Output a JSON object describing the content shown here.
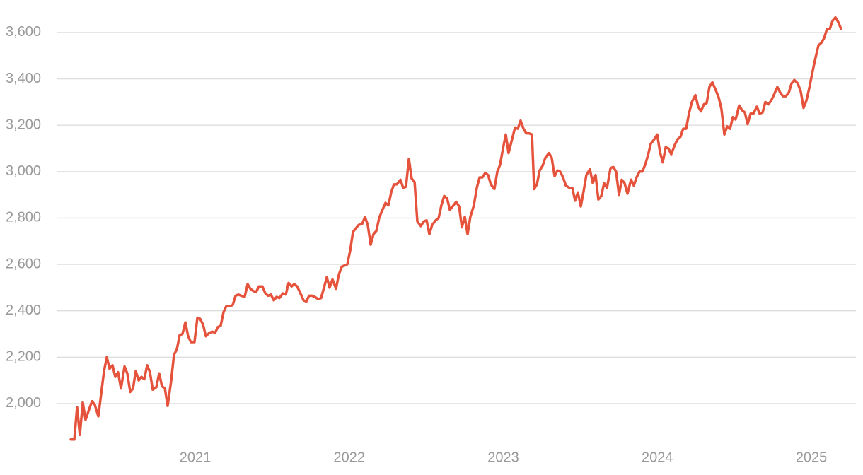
{
  "chart_data": {
    "type": "line",
    "x": [
      2020.192,
      2020.215,
      2020.233,
      2020.251,
      2020.27,
      2020.288,
      2020.311,
      2020.33,
      2020.348,
      2020.371,
      2020.389,
      2020.408,
      2020.426,
      2020.444,
      2020.463,
      2020.481,
      2020.499,
      2020.518,
      2020.541,
      2020.559,
      2020.578,
      2020.596,
      2020.614,
      2020.633,
      2020.651,
      2020.669,
      2020.688,
      2020.706,
      2020.724,
      2020.747,
      2020.766,
      2020.784,
      2020.803,
      2020.821,
      2020.844,
      2020.862,
      2020.881,
      2020.899,
      2020.917,
      2020.936,
      2020.954,
      2020.972,
      2020.995,
      2021.014,
      2021.032,
      2021.051,
      2021.069,
      2021.092,
      2021.11,
      2021.129,
      2021.147,
      2021.165,
      2021.184,
      2021.202,
      2021.225,
      2021.243,
      2021.262,
      2021.28,
      2021.298,
      2021.321,
      2021.34,
      2021.358,
      2021.377,
      2021.395,
      2021.413,
      2021.436,
      2021.455,
      2021.473,
      2021.491,
      2021.51,
      2021.528,
      2021.546,
      2021.569,
      2021.588,
      2021.606,
      2021.625,
      2021.643,
      2021.661,
      2021.68,
      2021.703,
      2021.721,
      2021.739,
      2021.758,
      2021.776,
      2021.799,
      2021.817,
      2021.836,
      2021.854,
      2021.872,
      2021.891,
      2021.914,
      2021.932,
      2021.951,
      2021.969,
      2021.987,
      2022.006,
      2022.024,
      2022.042,
      2022.061,
      2022.084,
      2022.102,
      2022.12,
      2022.139,
      2022.157,
      2022.176,
      2022.194,
      2022.212,
      2022.235,
      2022.254,
      2022.272,
      2022.29,
      2022.309,
      2022.332,
      2022.35,
      2022.368,
      2022.387,
      2022.405,
      2022.424,
      2022.442,
      2022.465,
      2022.483,
      2022.502,
      2022.52,
      2022.538,
      2022.561,
      2022.58,
      2022.598,
      2022.616,
      2022.635,
      2022.653,
      2022.671,
      2022.694,
      2022.713,
      2022.731,
      2022.75,
      2022.768,
      2022.786,
      2022.809,
      2022.828,
      2022.846,
      2022.864,
      2022.883,
      2022.901,
      2022.919,
      2022.942,
      2022.961,
      2022.979,
      2022.998,
      2023.016,
      2023.034,
      2023.053,
      2023.076,
      2023.094,
      2023.112,
      2023.131,
      2023.149,
      2023.167,
      2023.186,
      2023.2,
      2023.218,
      2023.236,
      2023.255,
      2023.273,
      2023.296,
      2023.314,
      2023.333,
      2023.351,
      2023.369,
      2023.388,
      2023.406,
      2023.429,
      2023.448,
      2023.466,
      2023.484,
      2023.503,
      2023.521,
      2023.539,
      2023.562,
      2023.581,
      2023.599,
      2023.617,
      2023.636,
      2023.654,
      2023.673,
      2023.696,
      2023.714,
      2023.732,
      2023.751,
      2023.769,
      2023.787,
      2023.806,
      2023.829,
      2023.847,
      2023.865,
      2023.884,
      2023.902,
      2023.921,
      2023.939,
      2023.957,
      2023.98,
      2023.999,
      2024.017,
      2024.035,
      2024.054,
      2024.072,
      2024.09,
      2024.113,
      2024.132,
      2024.15,
      2024.168,
      2024.187,
      2024.205,
      2024.224,
      2024.247,
      2024.265,
      2024.283,
      2024.302,
      2024.32,
      2024.338,
      2024.357,
      2024.38,
      2024.398,
      2024.416,
      2024.435,
      2024.453,
      2024.472,
      2024.49,
      2024.508,
      2024.531,
      2024.55,
      2024.568,
      2024.586,
      2024.605,
      2024.623,
      2024.646,
      2024.664,
      2024.683,
      2024.701,
      2024.72,
      2024.738,
      2024.756,
      2024.779,
      2024.798,
      2024.816,
      2024.834,
      2024.853,
      2024.871,
      2024.889,
      2024.912,
      2024.931,
      2024.949,
      2024.967,
      2024.986,
      2025.004,
      2025.023,
      2025.046,
      2025.064,
      2025.082,
      2025.101,
      2025.119,
      2025.137,
      2025.156,
      2025.174,
      2025.193
    ],
    "values": [
      1845,
      1845,
      1985,
      1865,
      2005,
      1930,
      1975,
      2010,
      1995,
      1945,
      2040,
      2140,
      2200,
      2150,
      2165,
      2115,
      2135,
      2065,
      2160,
      2130,
      2050,
      2065,
      2140,
      2100,
      2115,
      2105,
      2165,
      2135,
      2060,
      2070,
      2130,
      2075,
      2065,
      1990,
      2100,
      2210,
      2235,
      2295,
      2300,
      2350,
      2290,
      2265,
      2265,
      2370,
      2365,
      2340,
      2290,
      2305,
      2310,
      2305,
      2330,
      2335,
      2395,
      2420,
      2420,
      2425,
      2465,
      2470,
      2465,
      2460,
      2515,
      2495,
      2485,
      2480,
      2505,
      2505,
      2475,
      2465,
      2470,
      2445,
      2460,
      2455,
      2475,
      2470,
      2520,
      2505,
      2515,
      2505,
      2480,
      2445,
      2440,
      2465,
      2465,
      2460,
      2450,
      2455,
      2500,
      2545,
      2500,
      2535,
      2495,
      2555,
      2590,
      2595,
      2600,
      2660,
      2740,
      2755,
      2770,
      2775,
      2805,
      2770,
      2685,
      2730,
      2745,
      2800,
      2830,
      2865,
      2855,
      2910,
      2945,
      2945,
      2965,
      2930,
      2935,
      3055,
      2970,
      2955,
      2785,
      2765,
      2785,
      2790,
      2730,
      2770,
      2790,
      2800,
      2855,
      2895,
      2885,
      2835,
      2850,
      2870,
      2850,
      2760,
      2805,
      2730,
      2805,
      2855,
      2930,
      2975,
      2975,
      2995,
      2985,
      2945,
      2925,
      3000,
      3030,
      3100,
      3160,
      3080,
      3130,
      3190,
      3185,
      3220,
      3185,
      3165,
      3165,
      3160,
      2925,
      2945,
      3005,
      3025,
      3060,
      3080,
      3060,
      2980,
      3005,
      3000,
      2975,
      2940,
      2930,
      2930,
      2875,
      2910,
      2850,
      2915,
      2985,
      3010,
      2950,
      2985,
      2880,
      2895,
      2950,
      2930,
      3015,
      3020,
      3000,
      2900,
      2965,
      2950,
      2905,
      2965,
      2940,
      2975,
      3000,
      3000,
      3030,
      3070,
      3120,
      3140,
      3160,
      3085,
      3040,
      3105,
      3100,
      3075,
      3115,
      3140,
      3150,
      3185,
      3185,
      3250,
      3300,
      3330,
      3280,
      3260,
      3290,
      3295,
      3365,
      3385,
      3350,
      3320,
      3270,
      3160,
      3195,
      3185,
      3235,
      3225,
      3285,
      3265,
      3255,
      3205,
      3250,
      3250,
      3280,
      3250,
      3255,
      3300,
      3290,
      3305,
      3330,
      3365,
      3340,
      3325,
      3325,
      3340,
      3380,
      3395,
      3380,
      3345,
      3275,
      3305,
      3360,
      3420,
      3480,
      3545,
      3555,
      3575,
      3615,
      3615,
      3650,
      3665,
      3645,
      3615
    ],
    "color": "#e5533d",
    "xlim": [
      2020.1,
      2025.289
    ],
    "xticks": [
      2021,
      2022,
      2023,
      2024,
      2025
    ],
    "ylim": [
      1820,
      3740
    ],
    "yticks": [
      {
        "value": 2000,
        "label": "2,000"
      },
      {
        "value": 2200,
        "label": "2,200"
      },
      {
        "value": 2400,
        "label": "2,400"
      },
      {
        "value": 2600,
        "label": "2,600"
      },
      {
        "value": 2800,
        "label": "2,800"
      },
      {
        "value": 3000,
        "label": "3,000"
      },
      {
        "value": 3200,
        "label": "3,200"
      },
      {
        "value": 3400,
        "label": "3,400"
      },
      {
        "value": 3600,
        "label": "3,600"
      }
    ],
    "grid": true
  }
}
